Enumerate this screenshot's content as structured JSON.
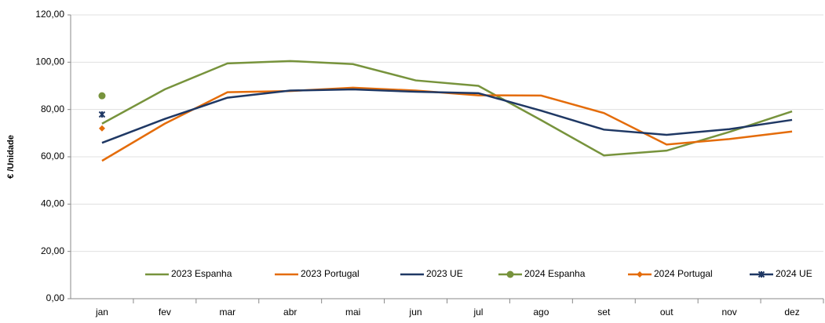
{
  "chart_data": {
    "type": "line",
    "y_label": "€ /Unidade",
    "categories": [
      "jan",
      "fev",
      "mar",
      "abr",
      "mai",
      "jun",
      "jul",
      "ago",
      "set",
      "out",
      "nov",
      "dez"
    ],
    "series": [
      {
        "name": "2023 Espanha",
        "color": "#77933c",
        "marker": "none",
        "values": [
          74,
          88.5,
          99.5,
          100.5,
          99.2,
          92.3,
          90,
          75.5,
          60.6,
          62.6,
          70.5,
          79.2
        ]
      },
      {
        "name": "2023 Portugal",
        "color": "#e46c0a",
        "marker": "none",
        "values": [
          58.3,
          74,
          87.3,
          87.8,
          89.2,
          88,
          86,
          85.9,
          78.5,
          65.2,
          67.5,
          70.7
        ]
      },
      {
        "name": "2023 UE",
        "color": "#1f3864",
        "marker": "none",
        "values": [
          65.9,
          76,
          85,
          88,
          88.5,
          87.5,
          86.9,
          79.5,
          71.5,
          69.3,
          71.7,
          75.6
        ]
      },
      {
        "name": "2024 Espanha",
        "color": "#77933c",
        "marker": "circle",
        "values": [
          85.8,
          null,
          null,
          null,
          null,
          null,
          null,
          null,
          null,
          null,
          null,
          null
        ]
      },
      {
        "name": "2024 Portugal",
        "color": "#e46c0a",
        "marker": "diamond",
        "values": [
          72,
          null,
          null,
          null,
          null,
          null,
          null,
          null,
          null,
          null,
          null,
          null
        ]
      },
      {
        "name": "2024 UE",
        "color": "#1f3864",
        "marker": "star",
        "values": [
          77.9,
          null,
          null,
          null,
          null,
          null,
          null,
          null,
          null,
          null,
          null,
          null
        ]
      }
    ],
    "ylim": [
      0,
      120
    ],
    "yticks": [
      {
        "value": 0,
        "label": "0,00"
      },
      {
        "value": 20,
        "label": "20,00"
      },
      {
        "value": 40,
        "label": "40,00"
      },
      {
        "value": 60,
        "label": "60,00"
      },
      {
        "value": 80,
        "label": "80,00"
      },
      {
        "value": 100,
        "label": "100,00"
      },
      {
        "value": 120,
        "label": "120,00"
      }
    ],
    "grid": true,
    "legend": "bottom"
  }
}
